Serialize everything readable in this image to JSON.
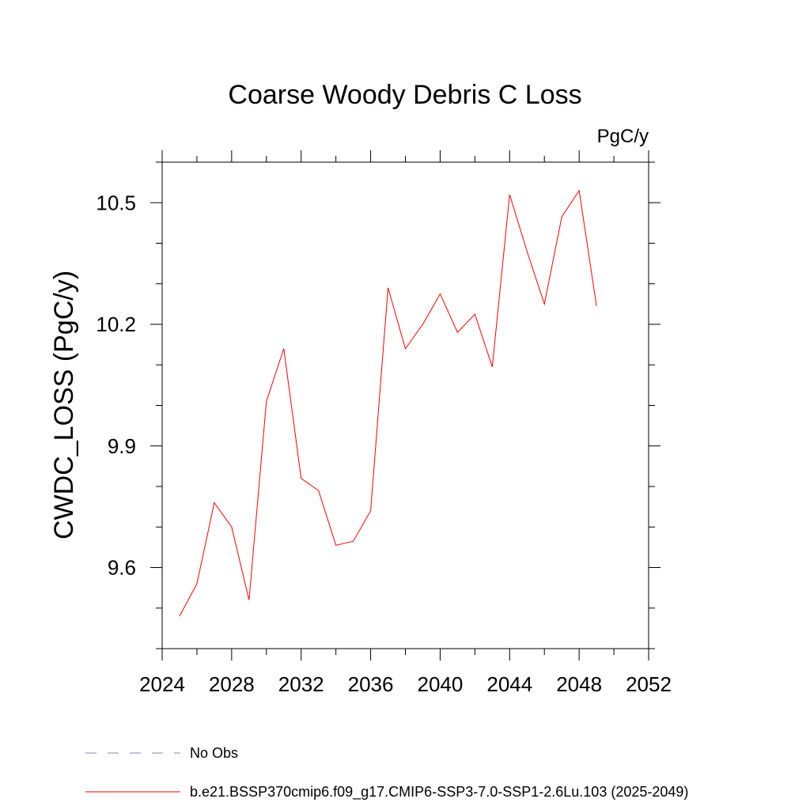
{
  "chart_data": {
    "type": "line",
    "title": "Coarse Woody Debris C Loss",
    "units_label": "PgC/y",
    "ylabel": "CWDC_LOSS  (PgC/y)",
    "xlabel": "",
    "xlim": [
      2024,
      2052
    ],
    "ylim": [
      9.4,
      10.6
    ],
    "xticks": [
      2024,
      2028,
      2032,
      2036,
      2040,
      2044,
      2048,
      2052
    ],
    "xtick_labels": [
      "2024",
      "2028",
      "2032",
      "2036",
      "2040",
      "2044",
      "2048",
      "2052"
    ],
    "yticks": [
      9.6,
      9.9,
      10.2,
      10.5
    ],
    "ytick_labels": [
      "9.6",
      "9.9",
      "10.2",
      "10.5"
    ],
    "x_minor_step": 2,
    "y_minor_step": 0.1,
    "series": [
      {
        "name": "b.e21.BSSP370cmip6.f09_g17.CMIP6-SSP3-7.0-SSP1-2.6Lu.103 (2025-2049)",
        "color": "#ff0000",
        "x": [
          2025,
          2026,
          2027,
          2028,
          2029,
          2030,
          2031,
          2032,
          2033,
          2034,
          2035,
          2036,
          2037,
          2038,
          2039,
          2040,
          2041,
          2042,
          2043,
          2044,
          2045,
          2046,
          2047,
          2048,
          2049
        ],
        "values": [
          9.48,
          9.56,
          9.76,
          9.7,
          9.52,
          10.01,
          10.14,
          9.82,
          9.79,
          9.655,
          9.665,
          9.74,
          10.29,
          10.14,
          10.2,
          10.275,
          10.18,
          10.225,
          10.095,
          10.52,
          10.38,
          10.25,
          10.465,
          10.53,
          10.245
        ]
      }
    ],
    "legend": [
      {
        "label": "No Obs",
        "style": "dashed",
        "color": "#8a7fc0"
      },
      {
        "label": "b.e21.BSSP370cmip6.f09_g17.CMIP6-SSP3-7.0-SSP1-2.6Lu.103 (2025-2049)",
        "style": "solid",
        "color": "#ff0000"
      }
    ]
  }
}
